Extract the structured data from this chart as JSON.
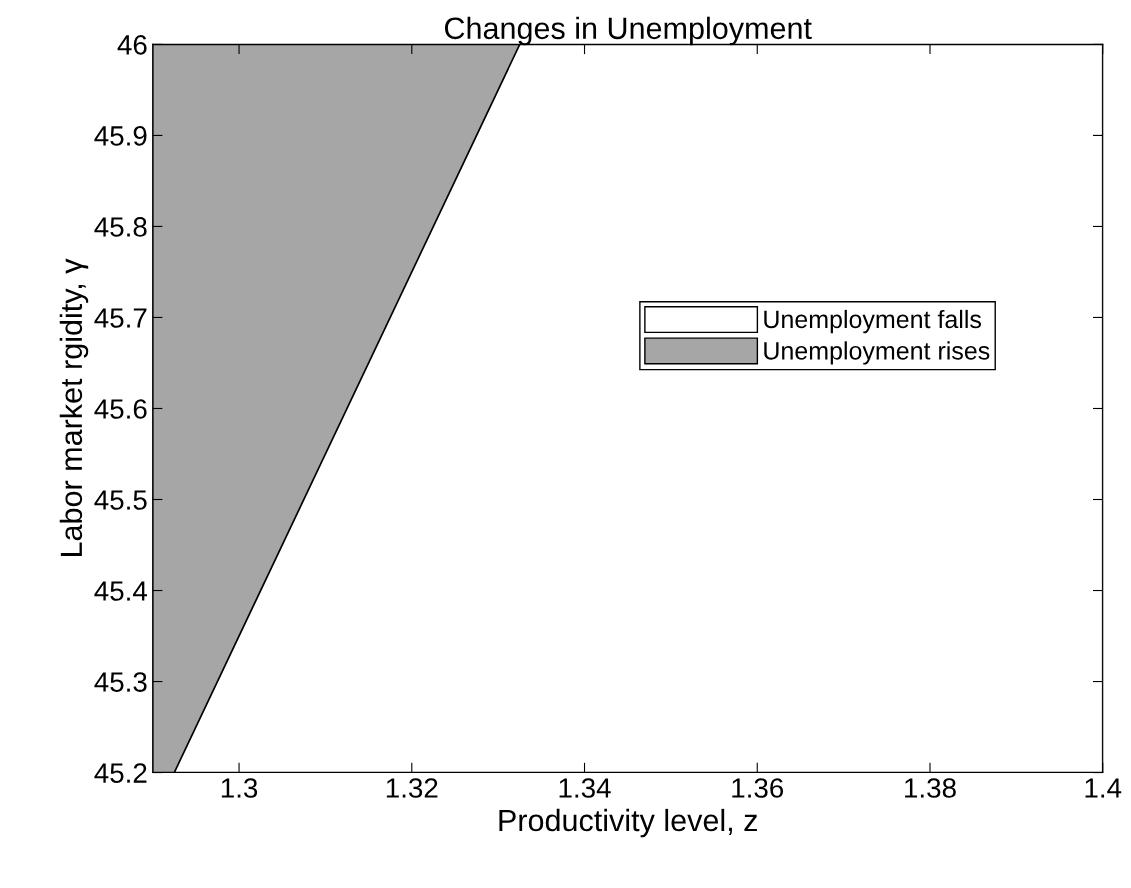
{
  "chart_data": {
    "type": "area",
    "title": "Changes in Unemployment",
    "xlabel": "Productivity level, z",
    "ylabel": "Labor market rgidity, γ",
    "series": [
      {
        "name": "Unemployment rises",
        "color": "#a6a6a6",
        "x": [
          1.29,
          1.3325
        ],
        "values": [
          46,
          46
        ]
      },
      {
        "name": "Unemployment falls",
        "color": "#ffffff",
        "x": [
          1.2925,
          1.3325,
          1.4
        ],
        "values": [
          45.2,
          46,
          46
        ]
      }
    ],
    "xlim": [
      1.29,
      1.4
    ],
    "xticks": [
      1.3,
      1.32,
      1.34,
      1.36,
      1.38,
      1.4
    ],
    "ylim": [
      45.2,
      46
    ],
    "yticks": [
      45.2,
      45.3,
      45.4,
      45.5,
      45.6,
      45.7,
      45.8,
      45.9,
      46
    ],
    "legend": "right",
    "grid": false
  }
}
